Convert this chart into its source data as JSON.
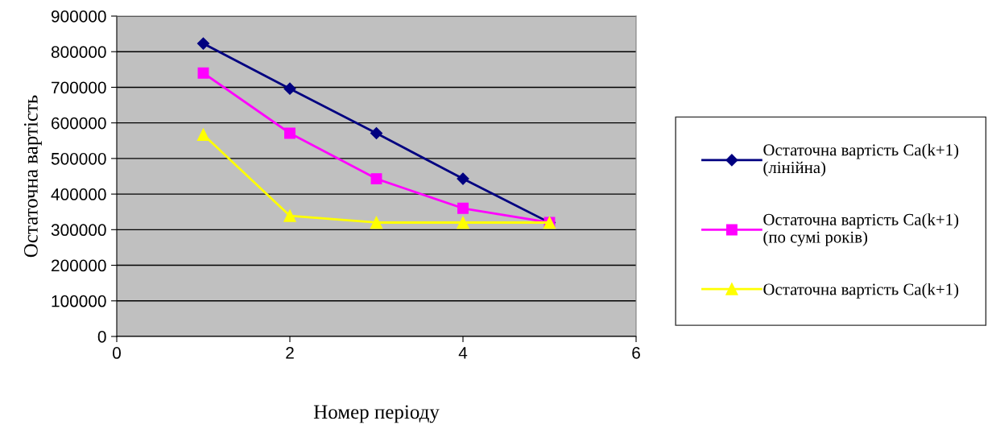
{
  "chart_data": {
    "type": "line",
    "xlabel": "Номер періоду",
    "ylabel": "Остаточна вартість",
    "x": [
      1,
      2,
      3,
      4,
      5
    ],
    "series": [
      {
        "name": "Остаточна вартість Ca(k+1)\n(лінійна)",
        "color": "#000080",
        "marker": "diamond",
        "values": [
          823000,
          696000,
          571000,
          443000,
          320000
        ]
      },
      {
        "name": "Остаточна вартість Ca(k+1)\n(по сумі років)",
        "color": "#ff00ff",
        "marker": "square",
        "values": [
          740000,
          571000,
          443000,
          360000,
          320000
        ]
      },
      {
        "name": "Остаточна вартість Ca(k+1)",
        "color": "#ffff00",
        "marker": "triangle",
        "values": [
          567000,
          339000,
          320000,
          320000,
          320000
        ]
      }
    ],
    "xlim": [
      0,
      6
    ],
    "xticks": [
      0,
      2,
      4,
      6
    ],
    "ylim": [
      0,
      900000
    ],
    "yticks": [
      0,
      100000,
      200000,
      300000,
      400000,
      500000,
      600000,
      700000,
      800000,
      900000
    ],
    "grid": "y",
    "legend": "right",
    "line_style": "solid"
  }
}
